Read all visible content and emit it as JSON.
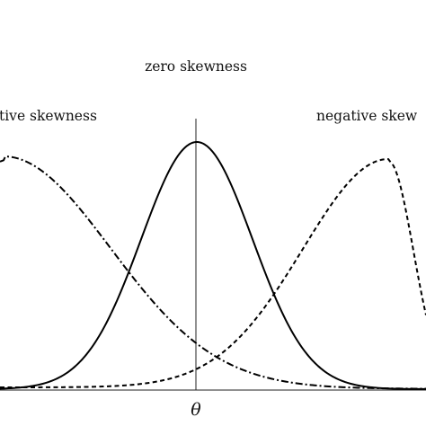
{
  "labels": {
    "zero": "zero skewness",
    "positive": "tive skewness",
    "negative": "negative skew",
    "theta": "θ"
  },
  "curves": {
    "zero": {
      "style": "solid",
      "color": "#000000"
    },
    "positive": {
      "style": "dash-dot",
      "color": "#000000"
    },
    "negative": {
      "style": "dashed",
      "color": "#000000"
    }
  }
}
